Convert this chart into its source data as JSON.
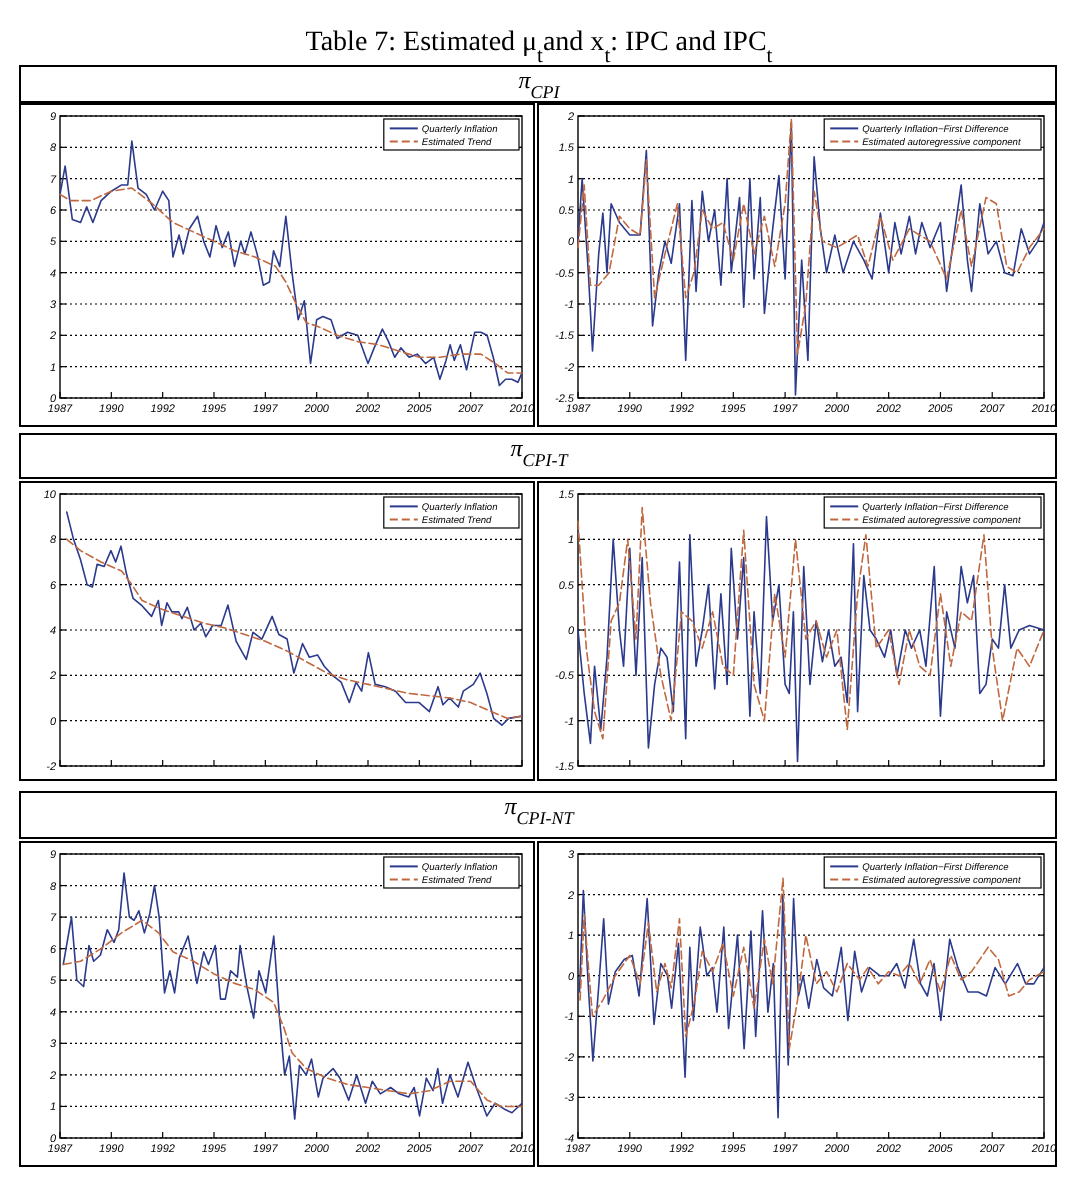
{
  "chart_data": [
    {
      "type": "line",
      "title": "Table 7: Estimated μ$_{t}$and x$_{t}$: IPC and IPC$_{t}$",
      "subtitle": "π$_{CPI}$",
      "xlim": [
        1987,
        2009.5
      ],
      "xticks": [
        {
          "value": 1987,
          "label": "1987"
        },
        {
          "value": 1989.5,
          "label": "1990"
        },
        {
          "value": 1992,
          "label": "1992"
        },
        {
          "value": 1994.5,
          "label": "1995"
        },
        {
          "value": 1997,
          "label": "1997"
        },
        {
          "value": 1999.5,
          "label": "2000"
        },
        {
          "value": 2002,
          "label": "2002"
        },
        {
          "value": 2004.5,
          "label": "2005"
        },
        {
          "value": 2007,
          "label": "2007"
        },
        {
          "value": 2009.5,
          "label": "2010"
        }
      ],
      "ylim": [
        0,
        9
      ],
      "yticks": [
        0,
        1,
        2,
        3,
        4,
        5,
        6,
        7,
        8,
        9
      ],
      "grid": "y",
      "legend": "top right",
      "series": [
        {
          "name": "Quarterly Inflation",
          "color": "#2b3a8c",
          "line_style": "solid",
          "x": [
            1987.0,
            1987.25,
            1987.6,
            1988.0,
            1988.3,
            1988.6,
            1989.0,
            1989.5,
            1990.0,
            1990.3,
            1990.5,
            1990.8,
            1991.2,
            1991.6,
            1992.0,
            1992.3,
            1992.5,
            1992.8,
            1993.0,
            1993.3,
            1993.7,
            1994.0,
            1994.3,
            1994.6,
            1994.9,
            1995.2,
            1995.5,
            1995.8,
            1996.0,
            1996.3,
            1996.6,
            1996.9,
            1997.2,
            1997.4,
            1997.7,
            1998.0,
            1998.3,
            1998.6,
            1998.9,
            1999.2,
            1999.5,
            1999.8,
            2000.2,
            2000.5,
            2001.0,
            2001.5,
            2002.0,
            2002.3,
            2002.7,
            2003.0,
            2003.3,
            2003.6,
            2004.0,
            2004.4,
            2004.8,
            2005.2,
            2005.5,
            2005.8,
            2006.0,
            2006.2,
            2006.5,
            2006.8,
            2007.2,
            2007.5,
            2007.8,
            2008.1,
            2008.4,
            2008.7,
            2009.0,
            2009.3,
            2009.5
          ],
          "values": [
            6.5,
            7.4,
            5.7,
            5.6,
            6.1,
            5.6,
            6.3,
            6.6,
            6.8,
            6.8,
            8.2,
            6.7,
            6.5,
            6.0,
            6.6,
            6.3,
            4.5,
            5.2,
            4.6,
            5.4,
            5.8,
            5.0,
            4.5,
            5.5,
            4.8,
            5.3,
            4.2,
            5.0,
            4.6,
            5.3,
            4.6,
            3.6,
            3.7,
            4.7,
            4.2,
            5.8,
            4.0,
            2.5,
            3.1,
            1.1,
            2.5,
            2.6,
            2.5,
            1.9,
            2.1,
            2.0,
            1.1,
            1.6,
            2.2,
            1.8,
            1.3,
            1.6,
            1.3,
            1.4,
            1.1,
            1.3,
            0.6,
            1.2,
            1.7,
            1.2,
            1.7,
            0.9,
            2.1,
            2.1,
            2.0,
            1.3,
            0.4,
            0.6,
            0.6,
            0.5,
            0.8
          ]
        },
        {
          "name": "Estimated Trend",
          "color": "#c0683f",
          "line_style": "dashed",
          "x": [
            1987.0,
            1987.5,
            1988.5,
            1989.5,
            1990.5,
            1991.5,
            1992.5,
            1993.5,
            1994.5,
            1995.5,
            1996.5,
            1997.5,
            1998.0,
            1998.5,
            1999.0,
            1999.5,
            2000.5,
            2001.5,
            2002.5,
            2003.5,
            2004.5,
            2005.5,
            2006.5,
            2007.5,
            2008.2,
            2008.8,
            2009.5
          ],
          "values": [
            6.5,
            6.3,
            6.3,
            6.6,
            6.7,
            6.2,
            5.6,
            5.3,
            5.0,
            4.7,
            4.5,
            4.2,
            3.7,
            3.0,
            2.4,
            2.3,
            2.0,
            1.8,
            1.7,
            1.5,
            1.3,
            1.3,
            1.4,
            1.4,
            1.1,
            0.8,
            0.8
          ]
        }
      ]
    },
    {
      "type": "line",
      "xlim": [
        1987,
        2009.5
      ],
      "xticks": [
        {
          "value": 1987,
          "label": "1987"
        },
        {
          "value": 1989.5,
          "label": "1990"
        },
        {
          "value": 1992,
          "label": "1992"
        },
        {
          "value": 1994.5,
          "label": "1995"
        },
        {
          "value": 1997,
          "label": "1997"
        },
        {
          "value": 1999.5,
          "label": "2000"
        },
        {
          "value": 2002,
          "label": "2002"
        },
        {
          "value": 2004.5,
          "label": "2005"
        },
        {
          "value": 2007,
          "label": "2007"
        },
        {
          "value": 2009.5,
          "label": "2010"
        }
      ],
      "ylim": [
        -2.5,
        2
      ],
      "yticks": [
        -2.5,
        -2,
        -1.5,
        -1,
        -0.5,
        0,
        0.5,
        1,
        1.5,
        2
      ],
      "grid": "y",
      "legend": "top right",
      "series": [
        {
          "name": "Quarterly Inflation−First Difference",
          "color": "#2b3a8c",
          "line_style": "solid",
          "x": [
            1987.0,
            1987.2,
            1987.5,
            1987.7,
            1988.0,
            1988.2,
            1988.4,
            1988.6,
            1989.0,
            1989.5,
            1990.0,
            1990.3,
            1990.6,
            1990.9,
            1991.2,
            1991.5,
            1991.9,
            1992.2,
            1992.5,
            1992.7,
            1993.0,
            1993.3,
            1993.6,
            1993.9,
            1994.2,
            1994.4,
            1994.8,
            1995.0,
            1995.3,
            1995.5,
            1995.8,
            1996.0,
            1996.4,
            1996.7,
            1997.0,
            1997.3,
            1997.5,
            1997.8,
            1998.1,
            1998.4,
            1998.7,
            1999.0,
            1999.4,
            1999.8,
            2000.3,
            2000.8,
            2001.2,
            2001.6,
            2002.0,
            2002.3,
            2002.6,
            2003.0,
            2003.3,
            2003.6,
            2004.0,
            2004.5,
            2004.8,
            2005.2,
            2005.5,
            2005.8,
            2006.0,
            2006.4,
            2006.8,
            2007.2,
            2007.6,
            2008.0,
            2008.4,
            2008.8,
            2009.2,
            2009.5
          ],
          "values": [
            0,
            1.0,
            -0.5,
            -1.75,
            -0.2,
            0.45,
            -0.5,
            0.6,
            0.3,
            0.1,
            0.1,
            1.45,
            -1.35,
            -0.5,
            0,
            -0.35,
            0.6,
            -1.9,
            0.65,
            -0.8,
            0.8,
            0,
            0.5,
            -0.7,
            1.0,
            -0.5,
            0.7,
            -1.05,
            1.0,
            -0.6,
            0.7,
            -1.15,
            0.2,
            1.05,
            -0.6,
            1.9,
            -2.45,
            -0.3,
            -1.9,
            1.35,
            0.2,
            -0.5,
            0.1,
            -0.5,
            0,
            -0.3,
            -0.6,
            0.45,
            -0.5,
            0.3,
            -0.2,
            0.4,
            -0.2,
            0.3,
            -0.1,
            0.3,
            -0.8,
            0.2,
            0.9,
            -0.3,
            -0.8,
            0.6,
            -0.2,
            0,
            -0.5,
            -0.55,
            0.2,
            -0.2,
            0,
            0.3
          ]
        },
        {
          "name": "Estimated autoregressive component",
          "color": "#c0683f",
          "line_style": "dashed",
          "x": [
            1987.0,
            1987.3,
            1987.6,
            1988.0,
            1988.5,
            1989.0,
            1989.5,
            1990.0,
            1990.3,
            1990.7,
            1991.2,
            1991.8,
            1992.2,
            1992.6,
            1993.0,
            1993.5,
            1994.0,
            1994.5,
            1995.0,
            1995.5,
            1996.0,
            1996.5,
            1997.0,
            1997.3,
            1997.6,
            1998.0,
            1998.4,
            1998.8,
            1999.5,
            2000.5,
            2001.0,
            2001.6,
            2002.2,
            2003.0,
            2004.0,
            2004.8,
            2005.5,
            2006.0,
            2006.7,
            2007.2,
            2007.7,
            2008.2,
            2008.8,
            2009.5
          ],
          "values": [
            -0.1,
            0.9,
            -0.7,
            -0.7,
            -0.5,
            0.4,
            0.2,
            0.1,
            1.3,
            -0.9,
            -0.2,
            0.6,
            -0.9,
            -0.5,
            0.5,
            0.2,
            0.3,
            -0.3,
            0.6,
            -0.2,
            0.4,
            -0.4,
            0.6,
            1.95,
            -1.8,
            -1.0,
            0.8,
            0,
            -0.1,
            0.1,
            -0.4,
            0.4,
            -0.3,
            0.2,
            0,
            -0.6,
            0.5,
            -0.4,
            0.7,
            0.6,
            -0.4,
            -0.5,
            -0.1,
            0.2
          ]
        }
      ]
    },
    {
      "type": "line",
      "subtitle": "π$_{CPI-T}$",
      "xlim": [
        1987,
        2009.5
      ],
      "xticks": [
        1987,
        1989.5,
        1992,
        1994.5,
        1997,
        1999.5,
        2002,
        2004.5,
        2007,
        2009.5
      ],
      "ylim": [
        -2,
        10
      ],
      "yticks": [
        -2,
        0,
        2,
        4,
        6,
        8,
        10
      ],
      "grid": "y",
      "legend": "top right",
      "tick_labels": "y",
      "series": [
        {
          "name": "Quarterly Inflation",
          "color": "#2b3a8c",
          "line_style": "solid",
          "x": [
            1987.33,
            1987.66,
            1988.0,
            1988.32,
            1988.58,
            1988.81,
            1989.15,
            1989.48,
            1989.71,
            1989.97,
            1990.23,
            1990.56,
            1990.96,
            1991.46,
            1991.79,
            1991.95,
            1992.21,
            1992.45,
            1992.78,
            1992.94,
            1993.2,
            1993.53,
            1993.86,
            1994.1,
            1994.43,
            1994.85,
            1995.18,
            1995.58,
            1996.07,
            1996.4,
            1996.83,
            1997.33,
            1997.66,
            1998.06,
            1998.39,
            1998.81,
            1999.14,
            1999.54,
            1999.87,
            2000.27,
            2000.69,
            2001.09,
            2001.42,
            2001.69,
            2002.02,
            2002.35,
            2002.84,
            2003.34,
            2003.83,
            2004.49,
            2004.99,
            2005.41,
            2005.65,
            2005.97,
            2006.4,
            2006.64,
            2007.13,
            2007.46,
            2007.79,
            2008.12,
            2008.52,
            2008.85,
            2009.5
          ],
          "values": [
            9.2,
            8.0,
            7.1,
            6.0,
            5.9,
            6.9,
            6.8,
            7.5,
            7.0,
            7.7,
            6.5,
            5.4,
            5.1,
            4.6,
            5.3,
            4.2,
            5.2,
            4.8,
            4.8,
            4.5,
            5.0,
            4.0,
            4.3,
            3.7,
            4.2,
            4.2,
            5.1,
            3.5,
            2.7,
            3.9,
            3.6,
            4.6,
            3.8,
            3.6,
            2.1,
            3.4,
            2.8,
            2.9,
            2.4,
            2.0,
            1.7,
            0.8,
            1.7,
            1.3,
            3.0,
            1.6,
            1.5,
            1.3,
            0.8,
            0.8,
            0.4,
            1.5,
            0.7,
            1.0,
            0.6,
            1.3,
            1.6,
            2.1,
            1.2,
            0.1,
            -0.2,
            0.1,
            0.2
          ]
        },
        {
          "name": "Estimated Trend",
          "color": "#c0683f",
          "line_style": "dashed",
          "x": [
            1987.33,
            1988,
            1989,
            1990,
            1990.5,
            1991,
            1992,
            1993,
            1994,
            1995,
            1996,
            1997,
            1998,
            1999,
            2000,
            2001,
            2002,
            2003,
            2004,
            2005,
            2006,
            2007,
            2008,
            2008.8,
            2009.5
          ],
          "values": [
            8.0,
            7.5,
            7.0,
            6.6,
            6.0,
            5.3,
            4.9,
            4.6,
            4.3,
            4.1,
            3.8,
            3.5,
            3.1,
            2.6,
            2.1,
            1.8,
            1.6,
            1.4,
            1.2,
            1.1,
            1.0,
            0.8,
            0.4,
            0.1,
            0.2
          ]
        }
      ]
    },
    {
      "type": "line",
      "xlim": [
        1987,
        2009.5
      ],
      "xticks": [
        1987,
        1989.5,
        1992,
        1994.5,
        1997,
        1999.5,
        2002,
        2004.5,
        2007,
        2009.5
      ],
      "ylim": [
        -1.5,
        1.5
      ],
      "yticks": [
        -1.5,
        -1,
        -0.5,
        0,
        0.5,
        1,
        1.5
      ],
      "grid": "y",
      "legend": "top right",
      "tick_labels": "y",
      "series": [
        {
          "name": "Quarterly Inflation−First Difference",
          "color": "#2b3a8c",
          "line_style": "solid",
          "x": [
            1987.0,
            1987.3,
            1987.6,
            1987.8,
            1988.1,
            1988.4,
            1988.7,
            1989.0,
            1989.2,
            1989.5,
            1989.8,
            1990.1,
            1990.4,
            1990.7,
            1991.0,
            1991.3,
            1991.6,
            1991.9,
            1992.2,
            1992.4,
            1992.7,
            1993.0,
            1993.3,
            1993.6,
            1993.9,
            1994.2,
            1994.4,
            1994.7,
            1995.0,
            1995.3,
            1995.5,
            1995.8,
            1996.1,
            1996.4,
            1996.7,
            1997.0,
            1997.2,
            1997.4,
            1997.6,
            1997.9,
            1998.2,
            1998.5,
            1998.8,
            1999.1,
            1999.4,
            1999.7,
            2000.0,
            2000.3,
            2000.5,
            2000.8,
            2001.1,
            2001.4,
            2001.8,
            2002.1,
            2002.4,
            2002.8,
            2003.1,
            2003.5,
            2003.8,
            2004.2,
            2004.5,
            2004.8,
            2005.2,
            2005.5,
            2005.8,
            2006.1,
            2006.4,
            2006.7,
            2007.0,
            2007.3,
            2007.6,
            2007.9,
            2008.3,
            2008.8,
            2009.5
          ],
          "values": [
            0,
            -0.7,
            -1.25,
            -0.4,
            -1.1,
            -0.3,
            1.0,
            0,
            -0.4,
            0.9,
            -0.5,
            0.8,
            -1.3,
            -0.6,
            -0.2,
            -0.3,
            -0.9,
            0.75,
            -1.2,
            1.05,
            -0.4,
            0,
            0.5,
            -0.65,
            0.4,
            -0.6,
            0.9,
            -0.1,
            0.8,
            -0.95,
            0.2,
            -0.7,
            1.25,
            0.1,
            0.5,
            -0.6,
            -0.7,
            0.2,
            -1.45,
            0.7,
            -0.6,
            0.1,
            -0.35,
            0,
            -0.4,
            -0.3,
            -0.8,
            0.95,
            -0.9,
            0.6,
            0,
            -0.1,
            -0.3,
            0,
            -0.5,
            0,
            -0.2,
            0,
            -0.4,
            0.7,
            -0.95,
            0.2,
            -0.2,
            0.7,
            0.3,
            0.6,
            -0.7,
            -0.6,
            -0.1,
            -0.2,
            0.5,
            -0.2,
            0,
            0.05,
            0
          ]
        },
        {
          "name": "Estimated autoregressive component",
          "color": "#c0683f",
          "line_style": "dashed",
          "x": [
            1987.0,
            1987.4,
            1987.8,
            1988.2,
            1988.6,
            1989.0,
            1989.4,
            1989.8,
            1990.1,
            1990.5,
            1991.0,
            1991.5,
            1992.0,
            1992.5,
            1993.0,
            1993.5,
            1994.0,
            1994.5,
            1995.0,
            1995.5,
            1996.0,
            1996.5,
            1997.0,
            1997.5,
            1998.0,
            1998.5,
            1999.0,
            1999.5,
            2000.0,
            2000.5,
            2000.9,
            2001.4,
            2002.0,
            2002.5,
            2003.0,
            2003.5,
            2004.0,
            2004.5,
            2005.0,
            2005.5,
            2006.0,
            2006.6,
            2007.0,
            2007.5,
            2008.2,
            2008.8,
            2009.5
          ],
          "values": [
            1.2,
            -0.2,
            -0.9,
            -1.2,
            0.1,
            0.3,
            1.0,
            -0.1,
            1.35,
            0.3,
            -0.5,
            -1.0,
            0.2,
            0.1,
            -0.2,
            0.2,
            -0.4,
            -0.5,
            1.1,
            -0.6,
            -1.0,
            0.4,
            -0.3,
            1.0,
            -0.1,
            0.1,
            -0.3,
            0,
            -1.1,
            0.4,
            1.05,
            -0.2,
            0,
            -0.6,
            0,
            -0.4,
            -0.5,
            0.4,
            -0.4,
            0.2,
            0.1,
            1.05,
            -0.2,
            -1.0,
            -0.2,
            -0.4,
            0
          ]
        }
      ]
    },
    {
      "type": "line",
      "subtitle": "π$_{CPI-NT}$",
      "xlim": [
        1987,
        2009.5
      ],
      "xticks": [
        {
          "value": 1987,
          "label": "1987"
        },
        {
          "value": 1989.5,
          "label": "1990"
        },
        {
          "value": 1992,
          "label": "1992"
        },
        {
          "value": 1994.5,
          "label": "1995"
        },
        {
          "value": 1997,
          "label": "1997"
        },
        {
          "value": 1999.5,
          "label": "2000"
        },
        {
          "value": 2002,
          "label": "2002"
        },
        {
          "value": 2004.5,
          "label": "2005"
        },
        {
          "value": 2007,
          "label": "2007"
        },
        {
          "value": 2009.5,
          "label": "2010"
        }
      ],
      "ylim": [
        0,
        9
      ],
      "yticks": [
        0,
        1,
        2,
        3,
        4,
        5,
        6,
        7,
        8,
        9
      ],
      "grid": "y",
      "legend": "top right",
      "series": [
        {
          "name": "Quarterly Inflation",
          "color": "#2b3a8c",
          "line_style": "solid",
          "x": [
            1987.16,
            1987.56,
            1987.82,
            1988.15,
            1988.41,
            1988.64,
            1988.97,
            1989.3,
            1989.63,
            1989.86,
            1990.12,
            1990.38,
            1990.61,
            1990.84,
            1991.11,
            1991.37,
            1991.6,
            1991.83,
            1992.09,
            1992.35,
            1992.58,
            1992.81,
            1993.24,
            1993.67,
            1994.0,
            1994.23,
            1994.56,
            1994.82,
            1995.05,
            1995.31,
            1995.64,
            1995.77,
            1996.1,
            1996.43,
            1996.69,
            1997.02,
            1997.41,
            1997.68,
            1997.94,
            1998.17,
            1998.43,
            1998.66,
            1998.99,
            1999.25,
            1999.58,
            1999.81,
            2000.3,
            2000.63,
            2001.06,
            2001.45,
            2001.88,
            2002.21,
            2002.6,
            2003.1,
            2003.52,
            2003.98,
            2004.25,
            2004.51,
            2004.84,
            2005.17,
            2005.4,
            2005.63,
            2005.99,
            2006.38,
            2006.87,
            2007.27,
            2007.79,
            2008.19,
            2008.68,
            2009.01,
            2009.5
          ],
          "values": [
            5.5,
            7.0,
            5.0,
            4.8,
            6.1,
            5.6,
            5.8,
            6.6,
            6.2,
            6.6,
            8.4,
            7.0,
            6.9,
            7.2,
            6.5,
            7.1,
            8.0,
            7.0,
            4.6,
            5.3,
            4.6,
            5.7,
            6.4,
            4.9,
            5.9,
            5.5,
            6.1,
            4.4,
            4.4,
            5.3,
            5.1,
            6.1,
            4.8,
            3.8,
            5.3,
            4.6,
            6.4,
            3.9,
            2.0,
            2.6,
            0.6,
            2.3,
            2.0,
            2.5,
            1.3,
            1.9,
            2.2,
            1.9,
            1.2,
            2.0,
            1.1,
            1.8,
            1.4,
            1.6,
            1.4,
            1.3,
            1.6,
            0.7,
            1.9,
            1.5,
            2.2,
            1.1,
            2.0,
            1.3,
            2.4,
            1.6,
            0.7,
            1.1,
            0.9,
            0.8,
            1.1
          ]
        },
        {
          "name": "Estimated Trend",
          "color": "#c0683f",
          "line_style": "dashed",
          "x": [
            1987.16,
            1988,
            1989,
            1990,
            1991,
            1991.8,
            1992.5,
            1993.5,
            1994.5,
            1995.5,
            1996.5,
            1997.4,
            1997.9,
            1998.3,
            1999,
            2000,
            2001,
            2002,
            2003,
            2004,
            2005,
            2006,
            2007,
            2007.8,
            2008.5,
            2009.5
          ],
          "values": [
            5.5,
            5.6,
            6.0,
            6.5,
            6.9,
            6.5,
            5.9,
            5.6,
            5.2,
            4.9,
            4.7,
            4.3,
            3.5,
            2.7,
            2.2,
            1.9,
            1.7,
            1.6,
            1.5,
            1.4,
            1.5,
            1.8,
            1.8,
            1.2,
            1.0,
            1.0
          ]
        }
      ]
    },
    {
      "type": "line",
      "xlim": [
        1987,
        2009.5
      ],
      "xticks": [
        {
          "value": 1987,
          "label": "1987"
        },
        {
          "value": 1989.5,
          "label": "1990"
        },
        {
          "value": 1992,
          "label": "1992"
        },
        {
          "value": 1994.5,
          "label": "1995"
        },
        {
          "value": 1997,
          "label": "1997"
        },
        {
          "value": 1999.5,
          "label": "2000"
        },
        {
          "value": 2002,
          "label": "2002"
        },
        {
          "value": 2004.5,
          "label": "2005"
        },
        {
          "value": 2007,
          "label": "2007"
        },
        {
          "value": 2009.5,
          "label": "2010"
        }
      ],
      "ylim": [
        -4,
        3
      ],
      "yticks": [
        -4,
        -3,
        -2,
        -1,
        0,
        1,
        2,
        3
      ],
      "grid": "y",
      "legend": "top right",
      "series": [
        {
          "name": "Quarterly Inflation−First Difference",
          "color": "#2b3a8c",
          "line_style": "solid",
          "x": [
            1987.07,
            1987.26,
            1987.49,
            1987.72,
            1987.98,
            1988.24,
            1988.47,
            1988.8,
            1989.23,
            1989.62,
            1989.95,
            1990.34,
            1990.67,
            1991.0,
            1991.32,
            1991.52,
            1991.85,
            1992.17,
            1992.4,
            1992.57,
            1992.9,
            1993.22,
            1993.48,
            1993.71,
            1994.04,
            1994.27,
            1994.7,
            1995.02,
            1995.35,
            1995.58,
            1995.91,
            1996.17,
            1996.43,
            1996.66,
            1996.89,
            1997.15,
            1997.41,
            1997.64,
            1997.87,
            1998.14,
            1998.53,
            1998.86,
            1999.28,
            1999.71,
            2000.03,
            2000.36,
            2000.69,
            2001.08,
            2001.57,
            2002.0,
            2002.39,
            2002.79,
            2003.21,
            2003.54,
            2003.87,
            2004.19,
            2004.52,
            2004.95,
            2005.34,
            2005.83,
            2006.32,
            2006.72,
            2007.14,
            2007.63,
            2008.22,
            2008.62,
            2009.01,
            2009.5
          ],
          "values": [
            -0.4,
            2.1,
            -0.2,
            -2.1,
            -0.4,
            1.4,
            -0.7,
            0.1,
            0.4,
            0.5,
            -0.5,
            1.9,
            -1.2,
            0.3,
            0,
            -0.8,
            0.8,
            -2.5,
            0.7,
            -1.1,
            1.2,
            0,
            0.2,
            -0.9,
            1.2,
            -1.3,
            1.0,
            -1.8,
            1.1,
            -1.5,
            1.6,
            -0.9,
            0.3,
            -3.5,
            2.0,
            -2.2,
            1.9,
            -0.5,
            0,
            -0.8,
            0.4,
            -0.3,
            -0.5,
            0.7,
            -1.1,
            0.6,
            -0.4,
            0.2,
            0,
            0,
            0.3,
            -0.3,
            0.9,
            -0.2,
            -0.5,
            0.3,
            -1.1,
            0.9,
            0.2,
            -0.4,
            -0.4,
            -0.5,
            0.2,
            -0.2,
            0.3,
            -0.2,
            -0.2,
            0.2
          ]
        },
        {
          "name": "Estimated autoregressive component",
          "color": "#c0683f",
          "line_style": "dashed",
          "x": [
            1987.1,
            1987.3,
            1987.7,
            1988.2,
            1988.8,
            1989.5,
            1990.0,
            1990.4,
            1990.8,
            1991.2,
            1991.5,
            1991.9,
            1992.2,
            1992.6,
            1993.0,
            1993.5,
            1994.0,
            1994.5,
            1995.0,
            1995.5,
            1996.0,
            1996.4,
            1996.9,
            1997.2,
            1997.6,
            1998.0,
            1998.5,
            1999.0,
            1999.5,
            2000.0,
            2000.6,
            2001.0,
            2001.5,
            2002.0,
            2002.5,
            2003.0,
            2003.5,
            2004.0,
            2004.5,
            2005.0,
            2005.5,
            2006.0,
            2006.8,
            2007.3,
            2007.8,
            2008.3,
            2008.8,
            2009.5
          ],
          "values": [
            -0.6,
            1.5,
            -1.0,
            -0.6,
            0,
            0.5,
            -0.2,
            1.3,
            -0.4,
            0.3,
            -0.3,
            1.4,
            -1.5,
            -0.7,
            0.6,
            0.1,
            0.8,
            -0.5,
            0.7,
            -0.8,
            0.9,
            -0.2,
            2.4,
            -1.8,
            -0.6,
            1.0,
            -0.2,
            0.1,
            -0.4,
            0.3,
            -0.1,
            0.2,
            -0.2,
            0.1,
            0,
            0.3,
            -0.2,
            0.4,
            -0.4,
            0.5,
            -0.1,
            0.1,
            0.7,
            0.4,
            -0.5,
            -0.4,
            -0.1,
            0.1
          ]
        }
      ]
    }
  ]
}
